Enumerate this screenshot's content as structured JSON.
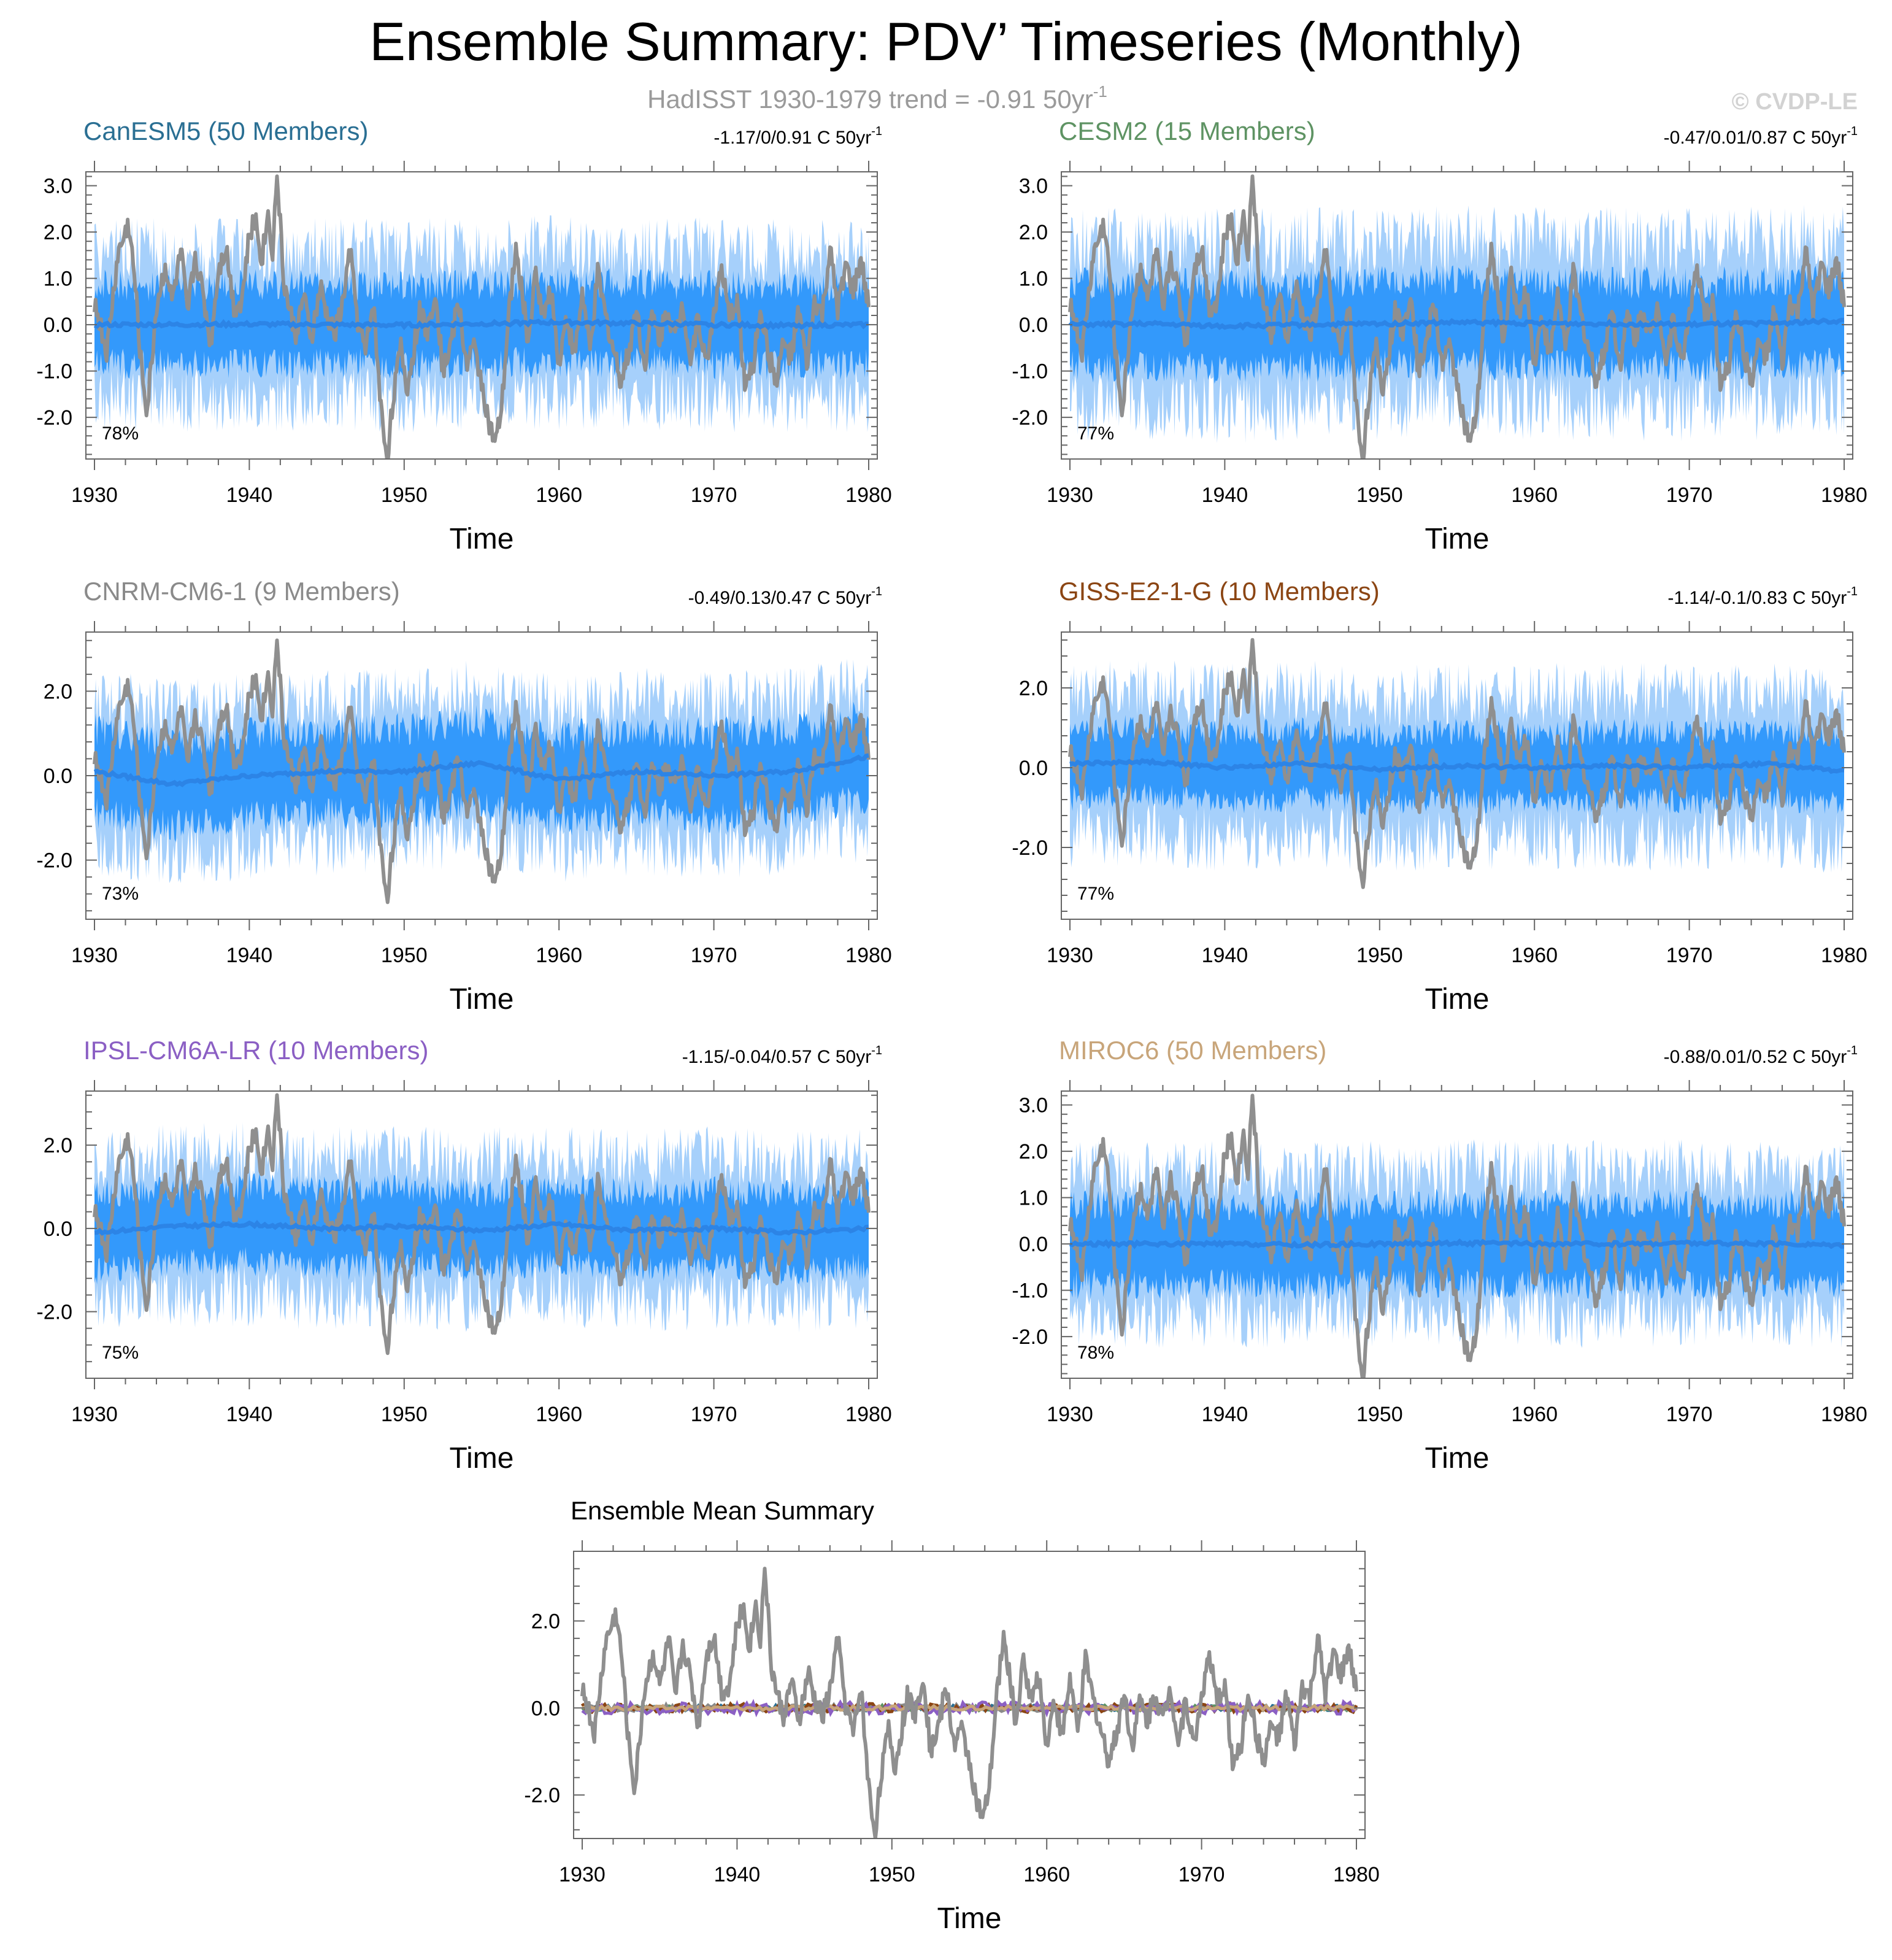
{
  "header": {
    "title": "Ensemble Summary: PDV’ Timeseries (Monthly)",
    "subtitle": "HadISST 1930-1979 trend = -0.91 50yr",
    "subtitle_sup": "-1",
    "watermark": "© CVDP-LE"
  },
  "colors": {
    "obs_line": "#8f8f8f",
    "band_outer": "#a6d0fb",
    "band_inner": "#3399fb",
    "ens_mean": "#2c84e6",
    "axis": "#666666"
  },
  "chart_data": [
    {
      "type": "line",
      "title": "CanESM5 (50 Members)",
      "title_color": "#2a6f93",
      "stats": "-1.17/0/0.91 C 50yr",
      "stats_sup": "-1",
      "percent": "78%",
      "xlabel": "Time",
      "ylabel": "",
      "xlim": [
        1930,
        1980
      ],
      "ylim": [
        -2.9,
        3.3
      ],
      "yticks": [
        3.0,
        2.0,
        1.0,
        0.0,
        -1.0,
        -2.0
      ],
      "ytick_labels": [
        "3.0",
        "2.0",
        "1.0",
        "0.0",
        "-1.0",
        "-2.0"
      ],
      "xticks": [
        1930,
        1940,
        1950,
        1960,
        1970,
        1980
      ],
      "xtick_labels": [
        "1930",
        "1940",
        "1950",
        "1960",
        "1970",
        "1980"
      ],
      "series": [
        {
          "name": "HadISST",
          "role": "obs",
          "color": "#8f8f8f"
        },
        {
          "name": "Ensemble 10-90% range",
          "role": "band-outer",
          "color": "#a6d0fb",
          "halfwidth": 1.6
        },
        {
          "name": "Ensemble 25-75% range",
          "role": "band-inner",
          "color": "#3399fb",
          "halfwidth": 0.85
        },
        {
          "name": "Ensemble Mean",
          "role": "mean",
          "color": "#2c84e6",
          "values": [
            0.0,
            0.0,
            0.01,
            0.0,
            -0.01,
            0.02,
            0.05,
            0.03,
            0.0,
            -0.02,
            0.0
          ]
        }
      ]
    },
    {
      "type": "line",
      "title": "CESM2 (15 Members)",
      "title_color": "#5e9363",
      "stats": "-0.47/0.01/0.87 C 50yr",
      "stats_sup": "-1",
      "percent": "77%",
      "xlabel": "Time",
      "ylabel": "",
      "xlim": [
        1930,
        1980
      ],
      "ylim": [
        -2.9,
        3.3
      ],
      "yticks": [
        3.0,
        2.0,
        1.0,
        0.0,
        -1.0,
        -2.0
      ],
      "ytick_labels": [
        "3.0",
        "2.0",
        "1.0",
        "0.0",
        "-1.0",
        "-2.0"
      ],
      "xticks": [
        1930,
        1940,
        1950,
        1960,
        1970,
        1980
      ],
      "xtick_labels": [
        "1930",
        "1940",
        "1950",
        "1960",
        "1970",
        "1980"
      ],
      "series": [
        {
          "name": "HadISST",
          "role": "obs",
          "color": "#8f8f8f"
        },
        {
          "name": "Ensemble 10-90% range",
          "role": "band-outer",
          "color": "#a6d0fb",
          "halfwidth": 1.75
        },
        {
          "name": "Ensemble 25-75% range",
          "role": "band-inner",
          "color": "#3399fb",
          "halfwidth": 0.9
        },
        {
          "name": "Ensemble Mean",
          "role": "mean",
          "color": "#2c84e6",
          "values": [
            0.0,
            0.02,
            -0.03,
            0.0,
            0.02,
            0.05,
            0.03,
            0.02,
            0.0,
            0.03,
            0.08
          ]
        }
      ]
    },
    {
      "type": "line",
      "title": "CNRM-CM6-1 (9 Members)",
      "title_color": "#8a8a8a",
      "stats": "-0.49/0.13/0.47 C 50yr",
      "stats_sup": "-1",
      "percent": "73%",
      "xlabel": "Time",
      "ylabel": "",
      "xlim": [
        1930,
        1980
      ],
      "ylim": [
        -3.4,
        3.4
      ],
      "yticks": [
        2.0,
        0.0,
        -2.0
      ],
      "ytick_labels": [
        "2.0",
        "0.0",
        "-2.0"
      ],
      "xticks": [
        1930,
        1940,
        1950,
        1960,
        1970,
        1980
      ],
      "xtick_labels": [
        "1930",
        "1940",
        "1950",
        "1960",
        "1970",
        "1980"
      ],
      "series": [
        {
          "name": "HadISST",
          "role": "obs",
          "color": "#8f8f8f"
        },
        {
          "name": "Ensemble 10-90% range",
          "role": "band-outer",
          "color": "#a6d0fb",
          "halfwidth": 1.7
        },
        {
          "name": "Ensemble 25-75% range",
          "role": "band-inner",
          "color": "#3399fb",
          "halfwidth": 1.0
        },
        {
          "name": "Ensemble Mean",
          "role": "mean",
          "color": "#2c84e6",
          "values": [
            0.1,
            -0.2,
            0.0,
            0.1,
            0.1,
            0.3,
            -0.1,
            0.1,
            0.0,
            0.1,
            0.45
          ]
        }
      ]
    },
    {
      "type": "line",
      "title": "GISS-E2-1-G (10 Members)",
      "title_color": "#8b4513",
      "stats": "-1.14/-0.1/0.83 C 50yr",
      "stats_sup": "-1",
      "percent": "77%",
      "xlabel": "Time",
      "ylabel": "",
      "xlim": [
        1930,
        1980
      ],
      "ylim": [
        -3.8,
        3.4
      ],
      "yticks": [
        2.0,
        0.0,
        -2.0
      ],
      "ytick_labels": [
        "2.0",
        "0.0",
        "-2.0"
      ],
      "xticks": [
        1930,
        1940,
        1950,
        1960,
        1970,
        1980
      ],
      "xtick_labels": [
        "1930",
        "1940",
        "1950",
        "1960",
        "1970",
        "1980"
      ],
      "series": [
        {
          "name": "HadISST",
          "role": "obs",
          "color": "#8f8f8f"
        },
        {
          "name": "Ensemble 10-90% range",
          "role": "band-outer",
          "color": "#a6d0fb",
          "halfwidth": 1.8
        },
        {
          "name": "Ensemble 25-75% range",
          "role": "band-inner",
          "color": "#3399fb",
          "halfwidth": 0.85
        },
        {
          "name": "Ensemble Mean",
          "role": "mean",
          "color": "#2c84e6",
          "values": [
            0.1,
            0.15,
            0.0,
            0.1,
            -0.05,
            0.05,
            0.0,
            0.05,
            0.0,
            0.1,
            -0.1
          ]
        }
      ]
    },
    {
      "type": "line",
      "title": "IPSL-CM6A-LR (10 Members)",
      "title_color": "#8b5fc4",
      "stats": "-1.15/-0.04/0.57 C 50yr",
      "stats_sup": "-1",
      "percent": "75%",
      "xlabel": "Time",
      "ylabel": "",
      "xlim": [
        1930,
        1980
      ],
      "ylim": [
        -3.6,
        3.3
      ],
      "yticks": [
        2.0,
        0.0,
        -2.0
      ],
      "ytick_labels": [
        "2.0",
        "0.0",
        "-2.0"
      ],
      "xticks": [
        1930,
        1940,
        1950,
        1960,
        1970,
        1980
      ],
      "xtick_labels": [
        "1930",
        "1940",
        "1950",
        "1960",
        "1970",
        "1980"
      ],
      "series": [
        {
          "name": "HadISST",
          "role": "obs",
          "color": "#8f8f8f"
        },
        {
          "name": "Ensemble 10-90% range",
          "role": "band-outer",
          "color": "#a6d0fb",
          "halfwidth": 1.7
        },
        {
          "name": "Ensemble 25-75% range",
          "role": "band-inner",
          "color": "#3399fb",
          "halfwidth": 0.9
        },
        {
          "name": "Ensemble Mean",
          "role": "mean",
          "color": "#2c84e6",
          "values": [
            -0.1,
            0.05,
            0.1,
            0.0,
            0.05,
            -0.05,
            0.1,
            -0.05,
            0.0,
            -0.1,
            0.0
          ]
        }
      ]
    },
    {
      "type": "line",
      "title": "MIROC6 (50 Members)",
      "title_color": "#c8a57a",
      "stats": "-0.88/0.01/0.52 C 50yr",
      "stats_sup": "-1",
      "percent": "78%",
      "xlabel": "Time",
      "ylabel": "",
      "xlim": [
        1930,
        1980
      ],
      "ylim": [
        -2.9,
        3.3
      ],
      "yticks": [
        3.0,
        2.0,
        1.0,
        0.0,
        -1.0,
        -2.0
      ],
      "ytick_labels": [
        "3.0",
        "2.0",
        "1.0",
        "0.0",
        "-1.0",
        "-2.0"
      ],
      "xticks": [
        1930,
        1940,
        1950,
        1960,
        1970,
        1980
      ],
      "xtick_labels": [
        "1930",
        "1940",
        "1950",
        "1960",
        "1970",
        "1980"
      ],
      "series": [
        {
          "name": "HadISST",
          "role": "obs",
          "color": "#8f8f8f"
        },
        {
          "name": "Ensemble 10-90% range",
          "role": "band-outer",
          "color": "#a6d0fb",
          "halfwidth": 1.55
        },
        {
          "name": "Ensemble 25-75% range",
          "role": "band-inner",
          "color": "#3399fb",
          "halfwidth": 0.85
        },
        {
          "name": "Ensemble Mean",
          "role": "mean",
          "color": "#2c84e6",
          "values": [
            0.0,
            0.0,
            0.0,
            -0.02,
            0.0,
            0.02,
            0.0,
            0.0,
            0.02,
            0.0,
            -0.02
          ]
        }
      ]
    },
    {
      "type": "line",
      "title": "Ensemble Mean Summary",
      "title_color": "#000000",
      "stats": "",
      "stats_sup": "",
      "percent": "",
      "xlabel": "Time",
      "ylabel": "",
      "xlim": [
        1930,
        1980
      ],
      "ylim": [
        -3.0,
        3.6
      ],
      "yticks": [
        2.0,
        0.0,
        -2.0
      ],
      "ytick_labels": [
        "2.0",
        "0.0",
        "-2.0"
      ],
      "xticks": [
        1930,
        1940,
        1950,
        1960,
        1970,
        1980
      ],
      "xtick_labels": [
        "1930",
        "1940",
        "1950",
        "1960",
        "1970",
        "1980"
      ],
      "series": [
        {
          "name": "HadISST",
          "role": "obs",
          "color": "#8f8f8f"
        },
        {
          "name": "CanESM5",
          "role": "model-mean",
          "color": "#2a6f93",
          "amp": 0.06
        },
        {
          "name": "CESM2",
          "role": "model-mean",
          "color": "#5e9363",
          "amp": 0.06
        },
        {
          "name": "CNRM-CM6-1",
          "role": "model-mean",
          "color": "#8a8a8a",
          "amp": 0.08
        },
        {
          "name": "GISS-E2-1-G",
          "role": "model-mean",
          "color": "#8b4513",
          "amp": 0.1
        },
        {
          "name": "IPSL-CM6A-LR",
          "role": "model-mean",
          "color": "#8b5fc4",
          "amp": 0.14
        },
        {
          "name": "MIROC6",
          "role": "model-mean",
          "color": "#c8a57a",
          "amp": 0.05
        }
      ]
    }
  ],
  "observed_reference": {
    "name": "HadISST",
    "x": [
      1930.0,
      1930.8,
      1931.5,
      1932.2,
      1932.6,
      1933.0,
      1933.4,
      1934.0,
      1934.6,
      1935.0,
      1935.6,
      1936.0,
      1936.5,
      1937.0,
      1937.5,
      1938.0,
      1938.5,
      1939.0,
      1939.5,
      1940.0,
      1940.4,
      1940.8,
      1941.2,
      1941.5,
      1941.8,
      1942.2,
      1942.6,
      1943.0,
      1943.5,
      1944.0,
      1944.6,
      1945.0,
      1945.5,
      1946.0,
      1946.5,
      1947.0,
      1947.5,
      1948.0,
      1948.5,
      1948.9,
      1949.3,
      1949.8,
      1950.2,
      1950.6,
      1951.0,
      1951.5,
      1952.0,
      1952.5,
      1953.0,
      1953.5,
      1954.0,
      1954.5,
      1955.0,
      1955.5,
      1955.9,
      1956.3,
      1956.8,
      1957.2,
      1957.6,
      1958.0,
      1958.5,
      1959.0,
      1959.5,
      1960.0,
      1960.5,
      1961.0,
      1961.5,
      1962.0,
      1962.5,
      1963.0,
      1963.5,
      1964.0,
      1964.5,
      1965.0,
      1965.5,
      1966.0,
      1966.5,
      1967.0,
      1967.5,
      1968.0,
      1968.5,
      1969.0,
      1969.5,
      1970.0,
      1970.5,
      1971.0,
      1971.5,
      1972.0,
      1972.5,
      1973.0,
      1973.5,
      1974.0,
      1974.5,
      1975.0,
      1975.5,
      1976.0,
      1976.5,
      1977.0,
      1977.5,
      1978.0,
      1978.5,
      1979.0,
      1979.5,
      1979.9
    ],
    "values": [
      0.5,
      -0.6,
      1.5,
      2.2,
      1.0,
      -0.8,
      -1.9,
      0.4,
      1.3,
      0.5,
      1.6,
      0.2,
      1.5,
      0.7,
      -0.4,
      1.2,
      1.7,
      0.4,
      0.5,
      1.9,
      2.3,
      1.4,
      2.4,
      1.6,
      3.3,
      1.0,
      0.3,
      -0.2,
      0.6,
      -0.3,
      0.8,
      0.2,
      -0.2,
      0.4,
      1.6,
      0.1,
      -0.6,
      0.5,
      -1.8,
      -2.9,
      -1.5,
      -0.5,
      -1.4,
      -0.6,
      0.3,
      -0.2,
      0.8,
      -1.0,
      -0.4,
      0.5,
      -0.8,
      -0.5,
      -1.2,
      -2.2,
      -2.6,
      -1.8,
      0.4,
      1.6,
      0.8,
      -0.4,
      1.1,
      0.2,
      0.7,
      -0.8,
      0.2,
      -0.7,
      0.7,
      -0.6,
      1.1,
      0.2,
      -0.5,
      -1.2,
      -0.6,
      0.4,
      -0.9,
      0.2,
      -0.3,
      0.4,
      -0.3,
      0.5,
      -0.8,
      0.2,
      -0.9,
      0.3,
      1.2,
      0.1,
      0.6,
      -1.3,
      -1.0,
      0.4,
      -0.6,
      -1.2,
      -0.4,
      -0.7,
      0.3,
      -0.9,
      0.5,
      0.2,
      1.6,
      0.3,
      1.3,
      0.7,
      1.4,
      0.5
    ]
  }
}
